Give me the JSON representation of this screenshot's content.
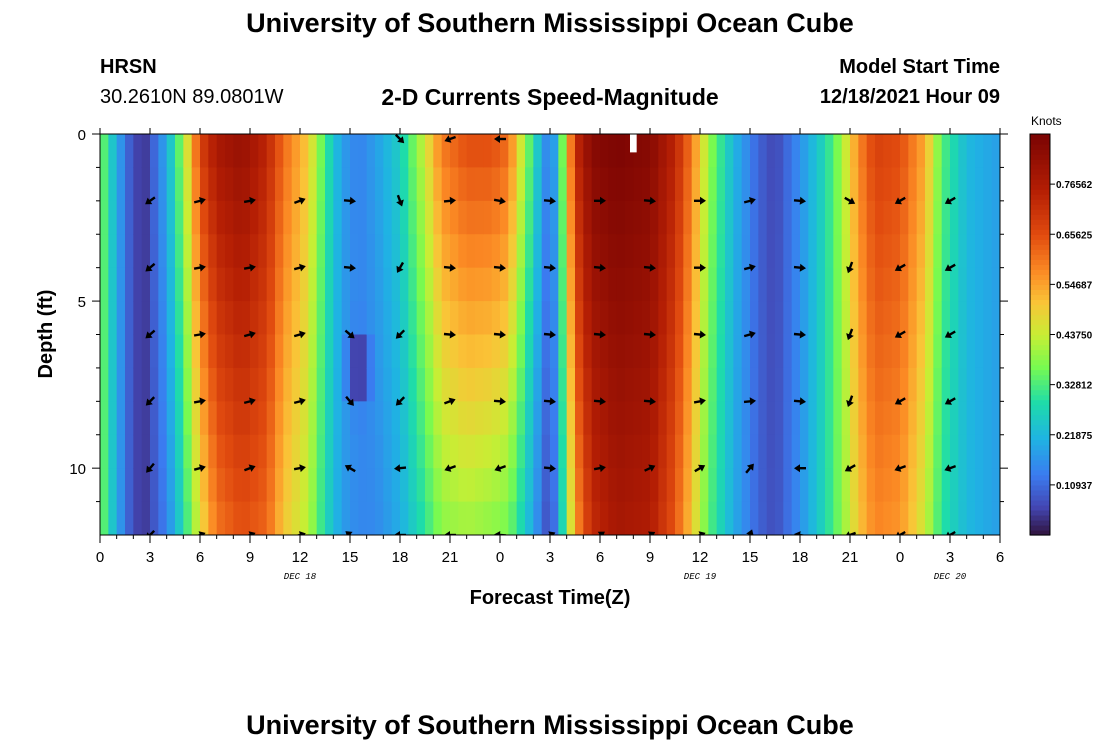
{
  "header": {
    "title": "University of Southern Mississippi Ocean Cube",
    "station": "HRSN",
    "coords": "30.2610N  89.0801W",
    "plot_title": "2-D Currents Speed-Magnitude",
    "model_start_label": "Model Start Time",
    "model_start_value": "12/18/2021 Hour 09"
  },
  "footer": {
    "title": "University of Southern Mississippi Ocean Cube"
  },
  "chart_data": {
    "type": "heatmap",
    "title": "2-D Currents Speed-Magnitude",
    "xlabel": "Forecast Time(Z)",
    "ylabel": "Depth (ft)",
    "xlim": [
      0,
      54
    ],
    "ylim": [
      0,
      12
    ],
    "x_tick_values": [
      0,
      3,
      6,
      9,
      12,
      15,
      18,
      21,
      24,
      27,
      30,
      33,
      36,
      39,
      42,
      45,
      48,
      51,
      54
    ],
    "x_tick_labels": [
      "0",
      "3",
      "6",
      "9",
      "12",
      "15",
      "18",
      "21",
      "0",
      "3",
      "6",
      "9",
      "12",
      "15",
      "18",
      "21",
      "0",
      "3",
      "6"
    ],
    "y_tick_values": [
      0,
      5,
      10
    ],
    "y_tick_labels": [
      "0",
      "5",
      "10"
    ],
    "date_labels": [
      {
        "x": 12,
        "label": "DEC 18"
      },
      {
        "x": 36,
        "label": "DEC 19"
      },
      {
        "x": 51,
        "label": "DEC 20"
      }
    ],
    "colorbar": {
      "label": "Knots",
      "range": [
        0.0,
        0.875
      ],
      "tick_values": [
        0.10937,
        0.21875,
        0.32812,
        0.4375,
        0.54687,
        0.65625,
        0.76562
      ],
      "tick_labels": [
        "0.10937",
        "0.21875",
        "0.32812",
        "0.43750",
        "0.54687",
        "0.65625",
        "0.76562"
      ]
    },
    "speed_profile": {
      "time": [
        0,
        1,
        2,
        2.8,
        4,
        5,
        6,
        7,
        8.5,
        10,
        11,
        12.5,
        13.5,
        14.5,
        15.5,
        16.5,
        18,
        19.5,
        20.5,
        22,
        23.5,
        24.5,
        25.5,
        26.5,
        27,
        27.5,
        28.5,
        29.5,
        31,
        33,
        34.5,
        35.5,
        36.5,
        38,
        39.5,
        40.5,
        42,
        43.5,
        44.5,
        45.5,
        46.5,
        48,
        49.5,
        50.5,
        52,
        54
      ],
      "surface": [
        0.38,
        0.2,
        0.06,
        0.05,
        0.2,
        0.4,
        0.68,
        0.78,
        0.82,
        0.74,
        0.62,
        0.5,
        0.32,
        0.18,
        0.14,
        0.18,
        0.26,
        0.45,
        0.6,
        0.66,
        0.66,
        0.62,
        0.4,
        0.2,
        0.12,
        0.25,
        0.72,
        0.85,
        0.87,
        0.85,
        0.74,
        0.6,
        0.4,
        0.22,
        0.1,
        0.06,
        0.16,
        0.28,
        0.4,
        0.58,
        0.68,
        0.66,
        0.54,
        0.34,
        0.22,
        0.18
      ],
      "bottom": [
        0.38,
        0.2,
        0.06,
        0.05,
        0.14,
        0.28,
        0.46,
        0.6,
        0.65,
        0.62,
        0.5,
        0.42,
        0.28,
        0.18,
        0.15,
        0.15,
        0.2,
        0.3,
        0.38,
        0.4,
        0.38,
        0.36,
        0.25,
        0.12,
        0.05,
        0.18,
        0.55,
        0.72,
        0.78,
        0.76,
        0.64,
        0.5,
        0.34,
        0.2,
        0.1,
        0.07,
        0.16,
        0.28,
        0.38,
        0.5,
        0.58,
        0.56,
        0.44,
        0.3,
        0.22,
        0.18
      ],
      "midwater_low_patch": {
        "time": 15.5,
        "depth": 7,
        "value": 0.04
      }
    },
    "missing_cell": {
      "time": 32,
      "depth": 0.5
    },
    "vectors": {
      "times": [
        3,
        6,
        9,
        12,
        15,
        18,
        21,
        24,
        27,
        30,
        33,
        36,
        39,
        42,
        45,
        48,
        51
      ],
      "depths": [
        2,
        4,
        6,
        8,
        10,
        12
      ],
      "direction_deg": [
        [
          235,
          75,
          80,
          70,
          95,
          160,
          85,
          100,
          95,
          90,
          95,
          90,
          75,
          95,
          120,
          240,
          240
        ],
        [
          230,
          80,
          80,
          75,
          95,
          210,
          95,
          95,
          95,
          95,
          95,
          90,
          75,
          95,
          200,
          240,
          240
        ],
        [
          230,
          80,
          75,
          75,
          130,
          225,
          95,
          95,
          95,
          95,
          95,
          95,
          75,
          95,
          200,
          240,
          240
        ],
        [
          225,
          80,
          75,
          75,
          140,
          225,
          70,
          95,
          95,
          95,
          95,
          80,
          85,
          95,
          200,
          240,
          240
        ],
        [
          220,
          75,
          70,
          80,
          300,
          265,
          250,
          250,
          95,
          80,
          65,
          60,
          40,
          270,
          240,
          250,
          250
        ],
        [
          225,
          70,
          70,
          75,
          310,
          270,
          270,
          275,
          65,
          55,
          60,
          70,
          20,
          280,
          250,
          240,
          240
        ]
      ],
      "surface_times": [
        18,
        21,
        24
      ],
      "surface_direction_deg": [
        135,
        250,
        270
      ]
    }
  }
}
